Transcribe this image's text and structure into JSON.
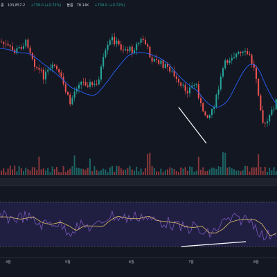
{
  "legend": {
    "price_prefix": "종",
    "price": "103,857.2",
    "price_change": "+739.0 (+0.72%)",
    "volume_label": "볼륨",
    "volume": "78.14K",
    "volume_change": "+739.0 (+0.72%)"
  },
  "x_axis": {
    "labels": [
      "4월",
      "5월",
      "6월",
      "7월",
      "8월"
    ]
  },
  "colors": {
    "background": "#131722",
    "up": "#26a69a",
    "down": "#ef5350",
    "ma_line": "#2962ff",
    "rsi_line": "#7e57c2",
    "rsi_ma": "#e0c06a",
    "rsi_band": "#2a2456",
    "trendline": "#ffffff"
  },
  "icons": {
    "legend_symbol": "dot-icon"
  }
}
